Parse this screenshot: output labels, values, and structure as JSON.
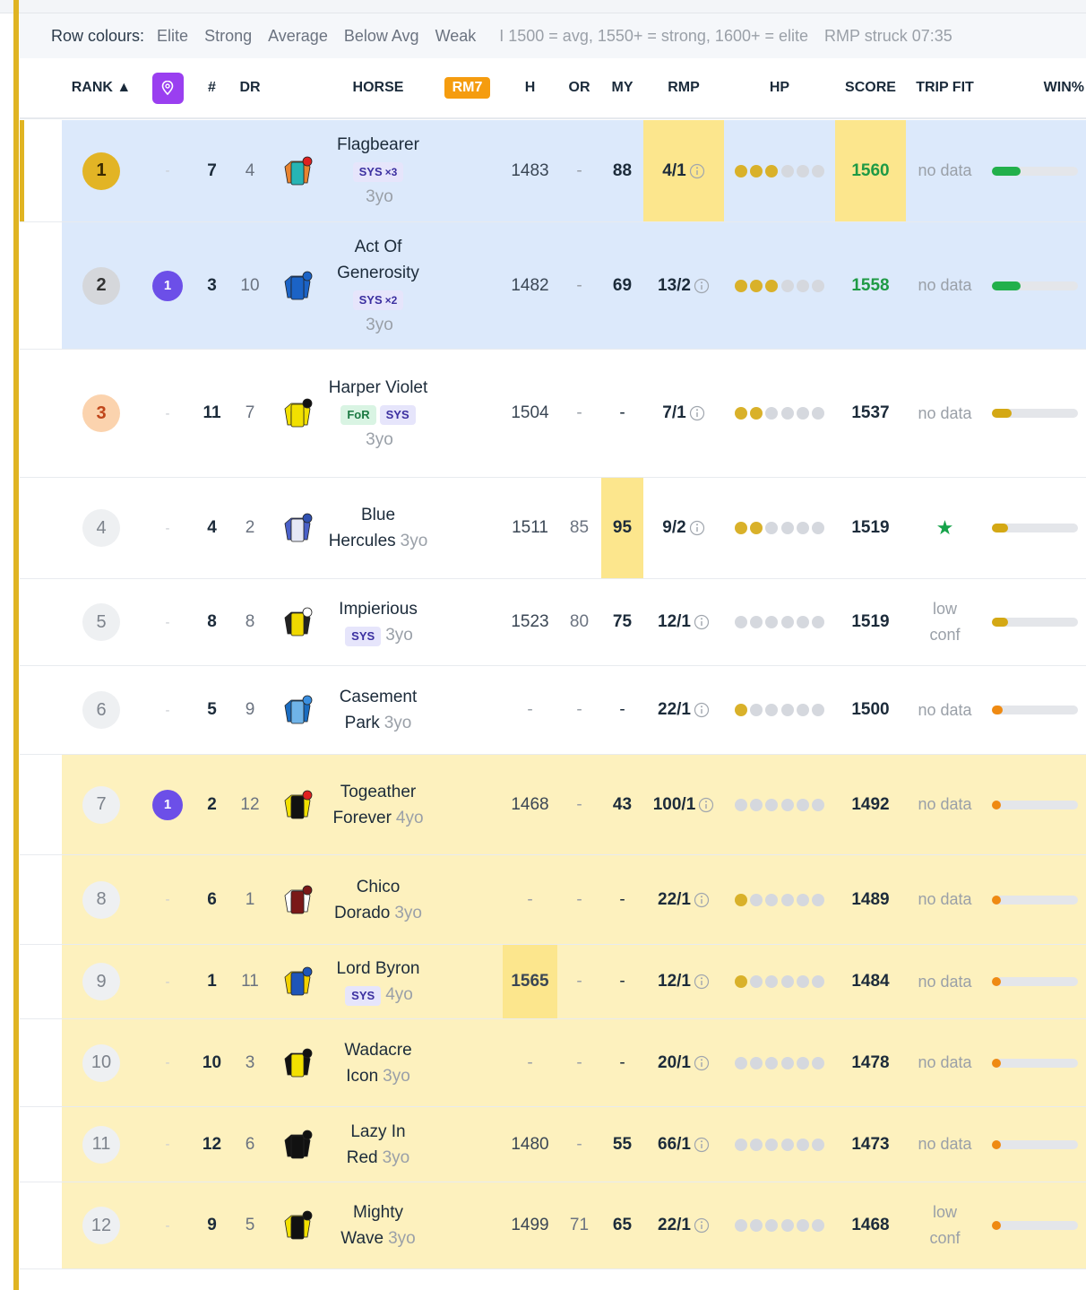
{
  "legend": {
    "label": "Row colours:",
    "items": [
      {
        "name": "Elite",
        "color": "#d9f4e3",
        "border": "#b5e6c7"
      },
      {
        "name": "Strong",
        "color": "#dce9fb",
        "border": "#b8cff2"
      },
      {
        "name": "Average",
        "color": "#ffffff",
        "border": "#c9cdd3"
      },
      {
        "name": "Below Avg",
        "color": "#fdf1be",
        "border": "#ecd98a"
      },
      {
        "name": "Weak",
        "color": "#fbd3d3",
        "border": "#eca4a4"
      }
    ],
    "note": "I 1500 = avg, 1550+ = strong, 1600+ = elite",
    "struck": "RMP struck 07:35"
  },
  "header": {
    "rank": "RANK ▲",
    "num": "#",
    "dr": "DR",
    "horse": "HORSE",
    "rm7": "RM7",
    "h": "H",
    "or": "OR",
    "my": "MY",
    "rmp": "RMP",
    "hp": "HP",
    "score": "SCORE",
    "trip": "TRIP FIT",
    "win": "WIN%"
  },
  "rows": [
    {
      "rank": 1,
      "pin": "-",
      "num": 7,
      "dr": 4,
      "name": "Flagbearer",
      "tags": [
        {
          "text": "SYS",
          "count": "×3"
        }
      ],
      "age": "3yo",
      "h": 1483,
      "or": "-",
      "my": 88,
      "rmp": "4/1",
      "hp": 3,
      "score": 1560,
      "trip": "no data",
      "win": 33,
      "band": "Strong",
      "highlight": [
        "rmp",
        "score"
      ],
      "silk": [
        "#27b4b4",
        "#e8832f",
        "#e02020"
      ]
    },
    {
      "rank": 2,
      "pin": "1",
      "num": 3,
      "dr": 10,
      "name": "Act Of Generosity",
      "tags": [
        {
          "text": "SYS",
          "count": "×2"
        }
      ],
      "age": "3yo",
      "h": 1482,
      "or": "-",
      "my": 69,
      "rmp": "13/2",
      "hp": 3,
      "score": 1558,
      "trip": "no data",
      "win": 33,
      "band": "Strong",
      "highlight": [],
      "silk": [
        "#1b63c6",
        "#1b63c6",
        "#1b63c6"
      ]
    },
    {
      "rank": 3,
      "pin": "-",
      "num": 11,
      "dr": 7,
      "name": "Harper Violet",
      "tags": [
        {
          "text": "FoR"
        },
        {
          "text": "SYS"
        }
      ],
      "age": "3yo",
      "h": 1504,
      "or": "-",
      "my": "-",
      "rmp": "7/1",
      "hp": 2,
      "score": 1537,
      "trip": "no data",
      "win": 23,
      "band": "Average",
      "highlight": [],
      "silk": [
        "#f2e000",
        "#f2e000",
        "#111111"
      ]
    },
    {
      "rank": 4,
      "pin": "-",
      "num": 4,
      "dr": 2,
      "name": "Blue Hercules",
      "tags": [],
      "age": "3yo",
      "h": 1511,
      "or": 85,
      "my": 95,
      "rmp": "9/2",
      "hp": 2,
      "score": 1519,
      "trip": "★",
      "win": 19,
      "band": "Average",
      "highlight": [
        "my"
      ],
      "silk": [
        "#e6e8f6",
        "#4a60c8",
        "#3050b0"
      ]
    },
    {
      "rank": 5,
      "pin": "-",
      "num": 8,
      "dr": 8,
      "name": "Impierious",
      "tags": [
        {
          "text": "SYS"
        }
      ],
      "age": "3yo",
      "h": 1523,
      "or": 80,
      "my": 75,
      "rmp": "12/1",
      "hp": 0,
      "score": 1519,
      "trip": "low conf",
      "win": 19,
      "band": "Average",
      "highlight": [],
      "silk": [
        "#f0d800",
        "#222222",
        "#ffffff"
      ]
    },
    {
      "rank": 6,
      "pin": "-",
      "num": 5,
      "dr": 9,
      "name": "Casement Park",
      "tags": [],
      "age": "3yo",
      "h": "-",
      "or": "-",
      "my": "-",
      "rmp": "22/1",
      "hp": 1,
      "score": 1500,
      "trip": "no data",
      "win": 12,
      "band": "Average",
      "highlight": [],
      "silk": [
        "#6fb3e8",
        "#1a6cc0",
        "#3a8fe0"
      ]
    },
    {
      "rank": 7,
      "pin": "1",
      "num": 2,
      "dr": 12,
      "name": "Togeather Forever",
      "tags": [],
      "age": "4yo",
      "h": 1468,
      "or": "-",
      "my": 43,
      "rmp": "100/1",
      "hp": 0,
      "score": 1492,
      "trip": "no data",
      "win": 10,
      "band": "Below Avg",
      "highlight": [],
      "silk": [
        "#111111",
        "#f2e000",
        "#e02020"
      ]
    },
    {
      "rank": 8,
      "pin": "-",
      "num": 6,
      "dr": 1,
      "name": "Chico Dorado",
      "tags": [],
      "age": "3yo",
      "h": "-",
      "or": "-",
      "my": "-",
      "rmp": "22/1",
      "hp": 1,
      "score": 1489,
      "trip": "no data",
      "win": 10,
      "band": "Below Avg",
      "highlight": [],
      "silk": [
        "#7a1818",
        "#ffffff",
        "#7a1818"
      ]
    },
    {
      "rank": 9,
      "pin": "-",
      "num": 1,
      "dr": 11,
      "name": "Lord Byron",
      "tags": [
        {
          "text": "SYS"
        }
      ],
      "age": "4yo",
      "h": 1565,
      "or": "-",
      "my": "-",
      "rmp": "12/1",
      "hp": 1,
      "score": 1484,
      "trip": "no data",
      "win": 10,
      "band": "Below Avg",
      "highlight": [
        "h"
      ],
      "silk": [
        "#1f55b8",
        "#f2d000",
        "#1f55b8"
      ]
    },
    {
      "rank": 10,
      "pin": "-",
      "num": 10,
      "dr": 3,
      "name": "Wadacre Icon",
      "tags": [],
      "age": "3yo",
      "h": "-",
      "or": "-",
      "my": "-",
      "rmp": "20/1",
      "hp": 0,
      "score": 1478,
      "trip": "no data",
      "win": 10,
      "band": "Below Avg",
      "highlight": [],
      "silk": [
        "#f2e000",
        "#111111",
        "#111111"
      ]
    },
    {
      "rank": 11,
      "pin": "-",
      "num": 12,
      "dr": 6,
      "name": "Lazy In Red",
      "tags": [],
      "age": "3yo",
      "h": 1480,
      "or": "-",
      "my": 55,
      "rmp": "66/1",
      "hp": 0,
      "score": 1473,
      "trip": "no data",
      "win": 10,
      "band": "Below Avg",
      "highlight": [],
      "silk": [
        "#111111",
        "#111111",
        "#111111"
      ]
    },
    {
      "rank": 12,
      "pin": "-",
      "num": 9,
      "dr": 5,
      "name": "Mighty Wave",
      "tags": [],
      "age": "3yo",
      "h": 1499,
      "or": 71,
      "my": 65,
      "rmp": "22/1",
      "hp": 0,
      "score": 1468,
      "trip": "low conf",
      "win": 10,
      "band": "Below Avg",
      "highlight": [],
      "silk": [
        "#111111",
        "#f2e000",
        "#111111"
      ]
    }
  ]
}
